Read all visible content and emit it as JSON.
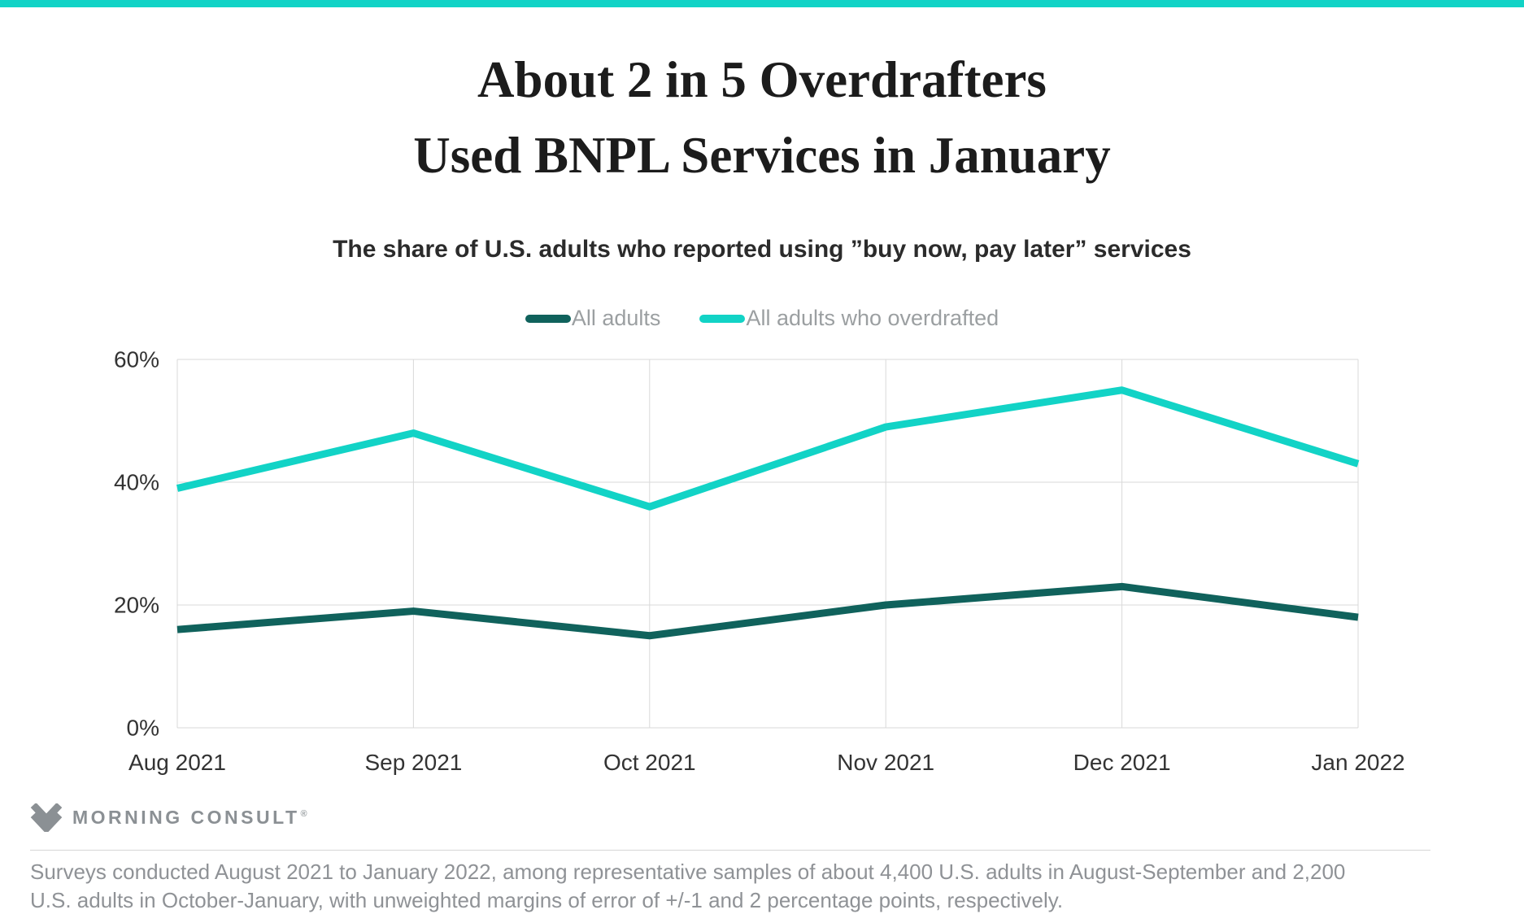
{
  "accent_bar_color": "#12d3c6",
  "header": {
    "title_line1": "About 2 in 5 Overdrafters",
    "title_line2": "Used BNPL Services in January",
    "subtitle": "The share of U.S. adults who reported using ”buy now, pay later” services"
  },
  "legend": {
    "items": [
      {
        "label": "All adults",
        "color": "#10625c"
      },
      {
        "label": "All adults who overdrafted",
        "color": "#12d3c6"
      }
    ]
  },
  "chart_data": {
    "type": "line",
    "title": "About 2 in 5 Overdrafters Used BNPL Services in January",
    "subtitle": "The share of U.S. adults who reported using ”buy now, pay later” services",
    "categories": [
      "Aug 2021",
      "Sep 2021",
      "Oct 2021",
      "Nov 2021",
      "Dec 2021",
      "Jan 2022"
    ],
    "series": [
      {
        "name": "All adults",
        "color": "#10625c",
        "values": [
          16,
          19,
          15,
          20,
          23,
          18
        ]
      },
      {
        "name": "All adults who overdrafted",
        "color": "#12d3c6",
        "values": [
          39,
          48,
          36,
          49,
          55,
          43
        ]
      }
    ],
    "xlabel": "",
    "ylabel": "",
    "ylim": [
      0,
      60
    ],
    "yticks": [
      0,
      20,
      40,
      60
    ],
    "ytick_suffix": "%",
    "grid": "on",
    "grid_color": "#d9d9d9",
    "legend_position": "top"
  },
  "footer": {
    "logo_text": "MORNING CONSULT",
    "logo_reg": "®",
    "note": "Surveys conducted August 2021 to January 2022, among representative samples of about 4,400 U.S. adults in August-September and 2,200 U.S. adults in October-January, with unweighted margins of error of +/-1 and 2 percentage points, respectively."
  }
}
